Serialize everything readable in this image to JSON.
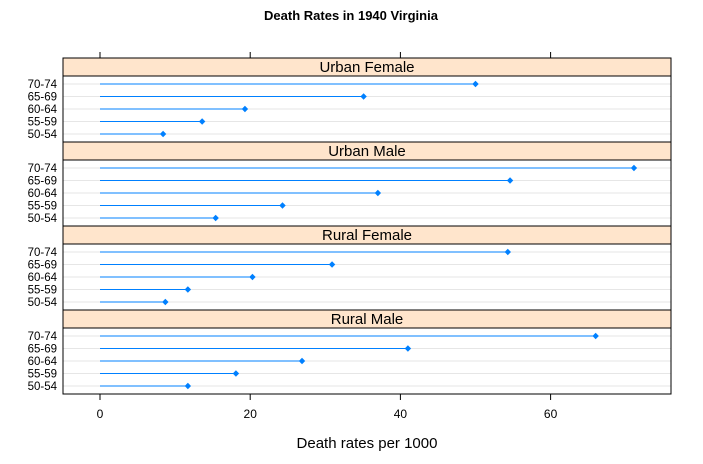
{
  "chart_data": {
    "type": "dotplot",
    "title": "Death Rates in 1940 Virginia",
    "xlabel": "Death rates per 1000",
    "ylabel": "",
    "xlim": [
      -5,
      76
    ],
    "xticks": [
      0,
      20,
      40,
      60
    ],
    "xtick_labels": [
      "0",
      "20",
      "40",
      "60"
    ],
    "categories": [
      "50-54",
      "55-59",
      "60-64",
      "65-69",
      "70-74"
    ],
    "panel_order_top_to_bottom": [
      "Urban Female",
      "Urban Male",
      "Rural Female",
      "Rural Male"
    ],
    "series": [
      {
        "name": "Urban Female",
        "values": [
          8.4,
          13.6,
          19.3,
          35.1,
          50.0
        ]
      },
      {
        "name": "Urban Male",
        "values": [
          15.4,
          24.3,
          37.0,
          54.6,
          71.1
        ]
      },
      {
        "name": "Rural Female",
        "values": [
          8.7,
          11.7,
          20.3,
          30.9,
          54.3
        ]
      },
      {
        "name": "Rural Male",
        "values": [
          11.7,
          18.1,
          26.9,
          41.0,
          66.0
        ]
      }
    ],
    "grid": true,
    "colors": {
      "point": "#0080ff",
      "strip_background": "#ffe5cc",
      "gridline": "#e6e6e6",
      "frame": "#000000"
    }
  }
}
